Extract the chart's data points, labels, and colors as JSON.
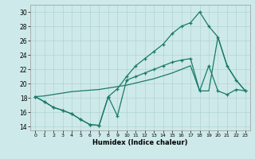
{
  "xlabel": "Humidex (Indice chaleur)",
  "xlim": [
    -0.5,
    23.5
  ],
  "ylim": [
    13.5,
    31
  ],
  "xticks": [
    0,
    1,
    2,
    3,
    4,
    5,
    6,
    7,
    8,
    9,
    10,
    11,
    12,
    13,
    14,
    15,
    16,
    17,
    18,
    19,
    20,
    21,
    22,
    23
  ],
  "yticks": [
    14,
    16,
    18,
    20,
    22,
    24,
    26,
    28,
    30
  ],
  "bg_color": "#cee9e9",
  "line_color": "#1a7a6a",
  "grid_color": "#b0d4d4",
  "line1_x": [
    0,
    1,
    2,
    3,
    4,
    5,
    6,
    7,
    8,
    9,
    10,
    11,
    12,
    13,
    14,
    15,
    16,
    17,
    18,
    19,
    20,
    21,
    22,
    23
  ],
  "line1_y": [
    18.2,
    17.5,
    16.7,
    16.3,
    15.8,
    15.0,
    14.3,
    14.2,
    18.2,
    15.5,
    20.5,
    21.0,
    21.5,
    22.0,
    22.5,
    23.0,
    23.3,
    23.5,
    19.0,
    22.5,
    19.0,
    18.5,
    19.2,
    19.0
  ],
  "line2_x": [
    0,
    1,
    2,
    3,
    4,
    5,
    6,
    7,
    8,
    9,
    10,
    11,
    12,
    13,
    14,
    15,
    16,
    17,
    18,
    19,
    20,
    21,
    22,
    23
  ],
  "line2_y": [
    18.2,
    17.5,
    16.7,
    16.3,
    15.8,
    15.0,
    14.3,
    14.2,
    18.2,
    19.3,
    21.0,
    22.5,
    23.5,
    24.5,
    25.5,
    27.0,
    28.0,
    28.5,
    30.0,
    28.0,
    26.5,
    22.5,
    20.5,
    19.0
  ],
  "line3_x": [
    0,
    1,
    2,
    3,
    4,
    5,
    6,
    7,
    8,
    9,
    10,
    11,
    12,
    13,
    14,
    15,
    16,
    17,
    18,
    19,
    20,
    21,
    22,
    23
  ],
  "line3_y": [
    18.2,
    18.3,
    18.5,
    18.7,
    18.9,
    19.0,
    19.1,
    19.2,
    19.4,
    19.6,
    19.8,
    20.1,
    20.4,
    20.7,
    21.1,
    21.5,
    22.0,
    22.5,
    19.0,
    19.0,
    26.5,
    22.5,
    20.5,
    19.0
  ]
}
